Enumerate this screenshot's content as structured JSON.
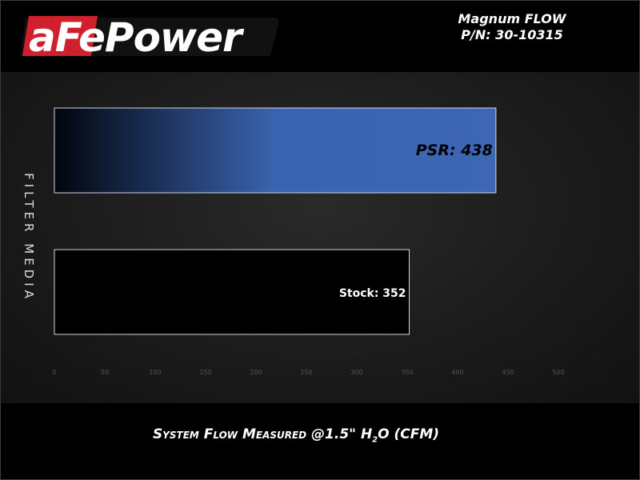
{
  "header": {
    "logo_text": "aFePower",
    "product_name": "Magnum FLOW",
    "part_number": "P/N: 30-10315"
  },
  "chart_data": {
    "type": "bar",
    "orientation": "horizontal",
    "categories": [
      "PSR",
      "Stock"
    ],
    "values": [
      438,
      352
    ],
    "data_labels": [
      "PSR: 438",
      "Stock: 352"
    ],
    "colors": [
      "#3d67b4",
      "#000000"
    ],
    "xlabel": "System Flow Measured @1.5\" H2O (CFM)",
    "xlabel_parts": {
      "before": "System Flow Measured @1.5\" H",
      "sub": "2",
      "after": "O (CFM)"
    },
    "ylabel": "FILTER MEDIA",
    "xlim": [
      0,
      500
    ],
    "xticks": [
      0,
      50,
      100,
      150,
      200,
      250,
      300,
      350,
      400,
      450,
      500
    ],
    "grid": false
  }
}
